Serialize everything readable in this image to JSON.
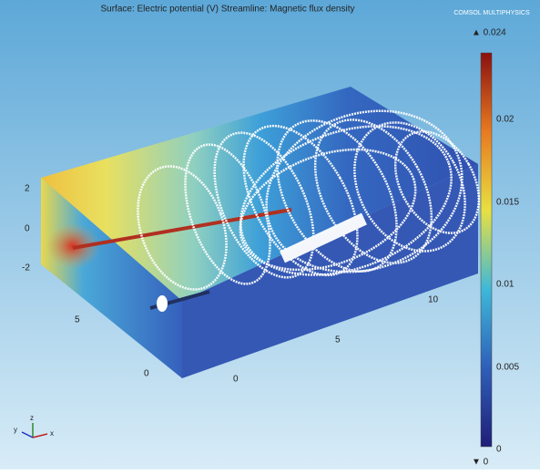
{
  "header": {
    "title": "Surface: Electric potential (V)  Streamline: Magnetic flux density",
    "logo": "COMSOL MULTIPHYSICS"
  },
  "colorbar": {
    "max_label": "▲ 0.024",
    "min_label": "▼ 0",
    "ticks": [
      "0.02",
      "0.015",
      "0.01",
      "0.005",
      "0"
    ]
  },
  "axes": {
    "z_ticks": [
      "2",
      "0",
      "-2"
    ],
    "y_ticks": [
      "5",
      "0"
    ],
    "x_ticks": [
      "0",
      "5",
      "10"
    ]
  },
  "triad": {
    "x": "x",
    "y": "y",
    "z": "z"
  }
}
